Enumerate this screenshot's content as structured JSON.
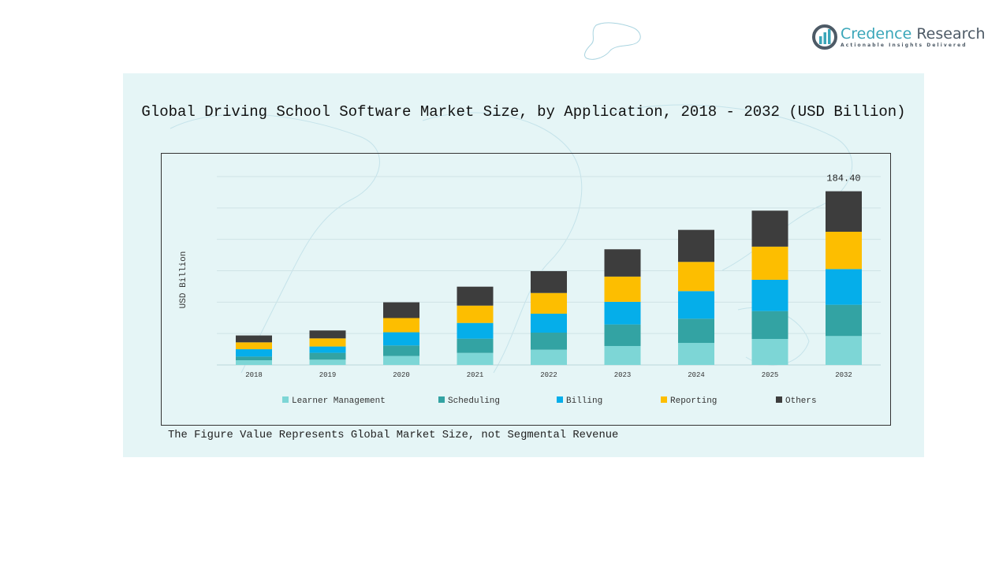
{
  "brand": {
    "name_part1": "Credence",
    "name_part2": "Research",
    "tagline": "Actionable Insights Delivered",
    "color": "#3aa6b9"
  },
  "footnote": "The Figure Value Represents Global Market Size, not Segmental Revenue",
  "chart_data": {
    "type": "bar",
    "stacked": true,
    "title": "Global Driving School Software Market Size, by Application, 2018 - 2032 (USD Billion)",
    "xlabel": "",
    "ylabel": "USD Billion",
    "ylim": [
      0,
      200
    ],
    "grid": true,
    "legend_position": "bottom",
    "categories": [
      "2018",
      "2019",
      "2020",
      "2021",
      "2022",
      "2023",
      "2024",
      "2025",
      "2032"
    ],
    "series": [
      {
        "name": "Learner Management",
        "color": "#7dd6d6",
        "values": [
          5.0,
          5.6,
          9.5,
          12.8,
          16.2,
          20.1,
          23.4,
          27.6,
          30.7
        ]
      },
      {
        "name": "Scheduling",
        "color": "#33a3a3",
        "values": [
          3.9,
          7.3,
          11.2,
          15.1,
          18.1,
          22.9,
          25.7,
          29.6,
          33.2
        ]
      },
      {
        "name": "Billing",
        "color": "#05aeea",
        "values": [
          7.8,
          6.7,
          14.0,
          16.7,
          20.1,
          24.0,
          29.3,
          33.2,
          37.9
        ]
      },
      {
        "name": "Reporting",
        "color": "#fdbe00",
        "values": [
          7.3,
          8.6,
          15.1,
          18.4,
          22.0,
          26.8,
          31.0,
          35.2,
          39.6
        ]
      },
      {
        "name": "Others",
        "color": "#3d3d3d",
        "values": [
          7.3,
          8.4,
          16.7,
          20.1,
          23.2,
          29.0,
          34.0,
          38.2,
          43.0
        ]
      }
    ],
    "annotations": [
      {
        "category": "2032",
        "text": "184.40"
      }
    ]
  }
}
